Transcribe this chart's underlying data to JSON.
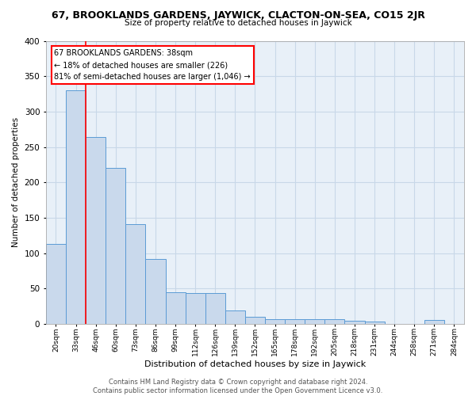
{
  "title": "67, BROOKLANDS GARDENS, JAYWICK, CLACTON-ON-SEA, CO15 2JR",
  "subtitle": "Size of property relative to detached houses in Jaywick",
  "xlabel": "Distribution of detached houses by size in Jaywick",
  "ylabel": "Number of detached properties",
  "bar_color": "#c9d9ec",
  "bar_edge_color": "#5b9bd5",
  "categories": [
    "20sqm",
    "33sqm",
    "46sqm",
    "60sqm",
    "73sqm",
    "86sqm",
    "99sqm",
    "112sqm",
    "126sqm",
    "139sqm",
    "152sqm",
    "165sqm",
    "178sqm",
    "192sqm",
    "205sqm",
    "218sqm",
    "231sqm",
    "244sqm",
    "258sqm",
    "271sqm",
    "284sqm"
  ],
  "bar_heights": [
    113,
    330,
    264,
    220,
    141,
    92,
    45,
    44,
    44,
    19,
    10,
    7,
    7,
    7,
    7,
    4,
    3,
    0,
    0,
    5,
    0
  ],
  "red_line_x": 1.5,
  "annotation_text": "67 BROOKLANDS GARDENS: 38sqm\n← 18% of detached houses are smaller (226)\n81% of semi-detached houses are larger (1,046) →",
  "annotation_box_color": "white",
  "annotation_box_edge": "red",
  "footer_text": "Contains HM Land Registry data © Crown copyright and database right 2024.\nContains public sector information licensed under the Open Government Licence v3.0.",
  "bg_color": "white",
  "plot_bg_color": "#e8f0f8",
  "grid_color": "#c8d8e8",
  "ylim": [
    0,
    400
  ],
  "yticks": [
    0,
    50,
    100,
    150,
    200,
    250,
    300,
    350,
    400
  ]
}
